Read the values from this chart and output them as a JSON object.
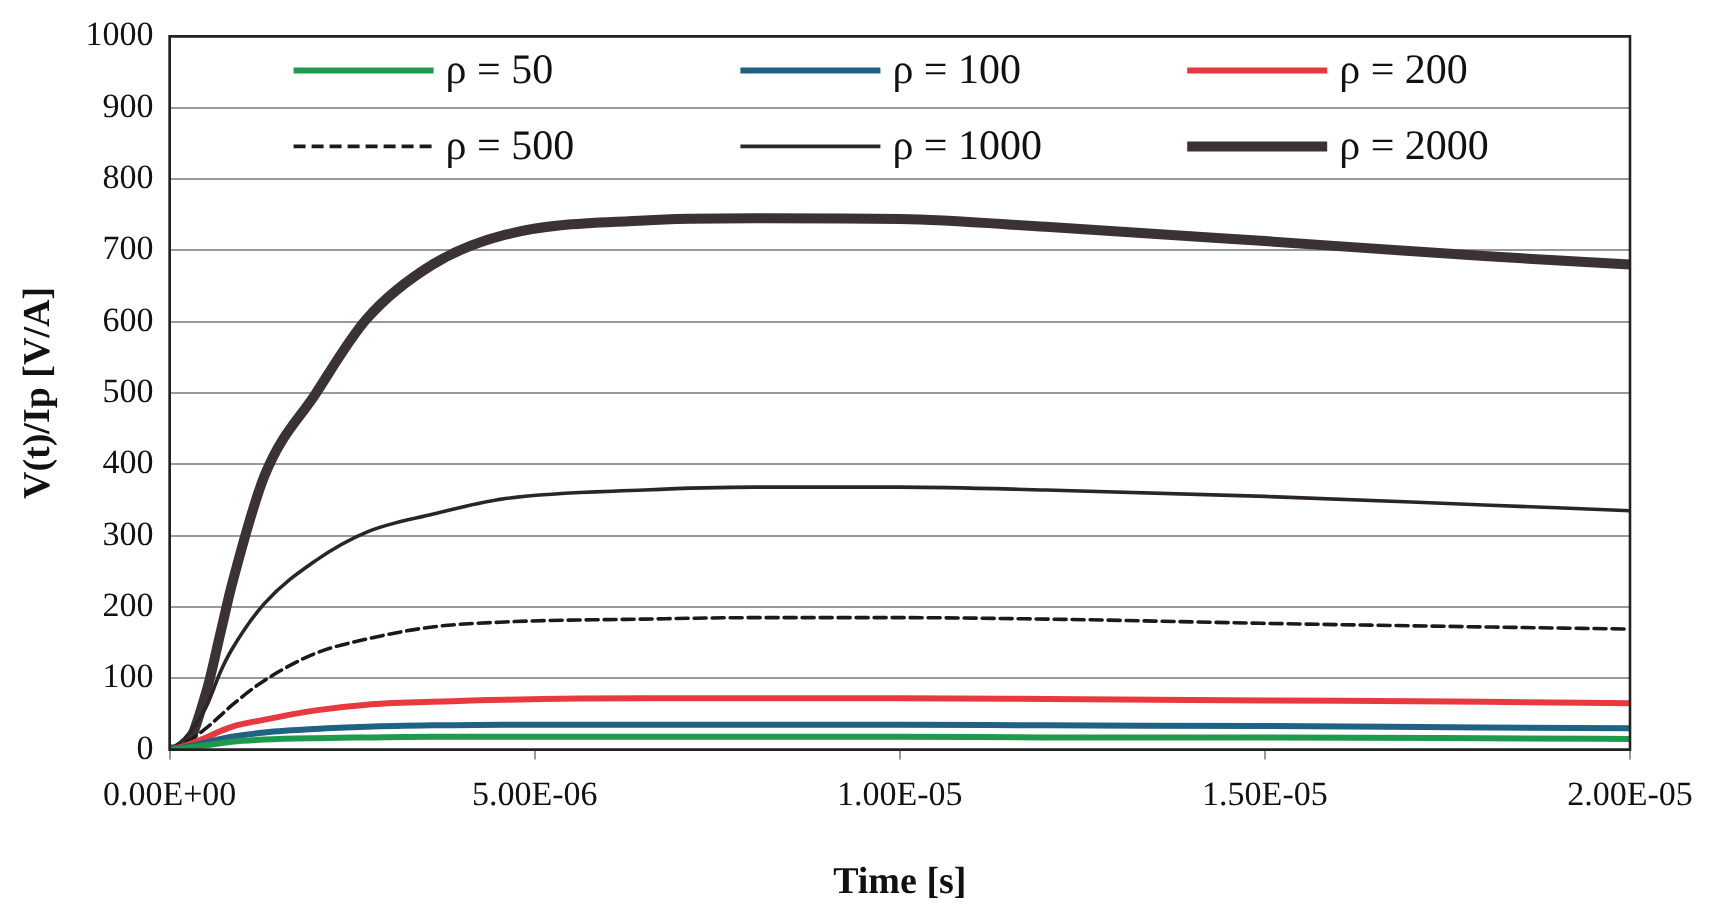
{
  "chart_data": {
    "type": "line",
    "xlabel": "Time [s]",
    "ylabel": "V(t)/Ip [V/A]",
    "xlim": [
      0,
      2e-05
    ],
    "xticks": [
      {
        "value": 0,
        "label": "0.00E+00"
      },
      {
        "value": 5e-06,
        "label": "5.00E-06"
      },
      {
        "value": 1e-05,
        "label": "1.00E-05"
      },
      {
        "value": 1.5e-05,
        "label": "1.50E-05"
      },
      {
        "value": 2e-05,
        "label": "2.00E-05"
      }
    ],
    "ylim": [
      0,
      1000
    ],
    "yticks": [
      0,
      100,
      200,
      300,
      400,
      500,
      600,
      700,
      800,
      900,
      1000
    ],
    "grid": "y",
    "legend": "top",
    "marker": "none",
    "line_style": "solid",
    "x": [
      0,
      2e-07,
      5e-07,
      7e-07,
      8.5e-07,
      1.3e-06,
      2e-06,
      2.7e-06,
      3.6e-06,
      4.6e-06,
      6.5e-06,
      8e-06,
      1e-05,
      1.2e-05,
      1.5e-05,
      1.8e-05,
      2e-05
    ],
    "series": [
      {
        "name": "ρ = 50",
        "color": "#1e9a4c",
        "values": [
          0,
          2,
          6,
          9,
          11,
          14,
          16,
          17,
          18,
          18,
          18,
          18,
          18,
          17,
          17,
          16,
          15
        ]
      },
      {
        "name": "ρ = 100",
        "color": "#1f6283",
        "values": [
          0,
          3,
          10,
          15,
          18,
          24,
          29,
          32,
          34,
          35,
          35,
          35,
          35,
          34,
          33,
          31,
          30
        ]
      },
      {
        "name": "ρ = 200",
        "color": "#e8393f",
        "values": [
          0,
          5,
          17,
          26,
          32,
          42,
          55,
          63,
          67,
          70,
          72,
          72,
          72,
          71,
          69,
          67,
          65
        ]
      },
      {
        "name": "ρ = 500",
        "color": "#1a1a1a",
        "line_style": "dashed",
        "values": [
          0,
          8,
          30,
          48,
          62,
          97,
          135,
          155,
          172,
          179,
          183,
          185,
          185,
          183,
          177,
          172,
          169
        ]
      },
      {
        "name": "ρ = 1000",
        "color": "#2b2527",
        "values": [
          0,
          15,
          60,
          110,
          140,
          205,
          265,
          305,
          330,
          352,
          364,
          368,
          368,
          364,
          355,
          343,
          335
        ]
      },
      {
        "name": "ρ = 2000",
        "color": "#3b3234",
        "values": [
          0,
          3,
          80,
          165,
          230,
          384,
          499,
          604,
          680,
          722,
          742,
          745,
          744,
          733,
          713,
          692,
          680
        ]
      }
    ]
  }
}
